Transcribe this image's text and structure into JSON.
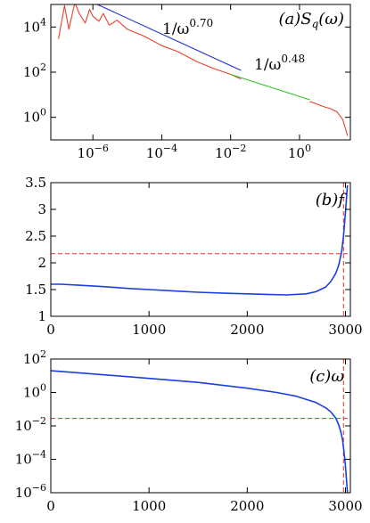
{
  "colors": {
    "raw_spectrum": "#e8402a",
    "fit_low": "#2030d0",
    "fit_high": "#30c020",
    "curve": "#1a3fe0",
    "threshold": "#e83030"
  },
  "chart_data": [
    {
      "type": "line",
      "panel_label": "(a)S_q(ω)",
      "xscale": "log",
      "yscale": "log",
      "xlim": [
        6e-08,
        30
      ],
      "ylim": [
        0.1,
        100000
      ],
      "x_ticks": [
        1e-06,
        0.0001,
        0.01,
        1
      ],
      "x_tick_labels": [
        "10^-6",
        "10^-4",
        "10^-2",
        "10^0"
      ],
      "y_ticks": [
        1,
        100,
        10000
      ],
      "y_tick_labels": [
        "10^0",
        "10^2",
        "10^4"
      ],
      "annotations": [
        {
          "base": "1/ω",
          "exponent": "0.70"
        },
        {
          "base": "1/ω",
          "exponent": "0.48"
        }
      ],
      "series": [
        {
          "role": "raw_spectrum",
          "x": [
            1e-07,
            1.5e-07,
            2e-07,
            3e-07,
            4e-07,
            6e-07,
            8e-07,
            1e-06,
            1.5e-06,
            2e-06,
            3e-06,
            5e-06,
            1e-05,
            3e-05,
            0.0001,
            0.0003,
            0.001,
            0.003,
            0.01,
            0.02
          ],
          "y": [
            3000,
            90000,
            8000,
            120000,
            40000,
            15000,
            60000,
            30000,
            18000,
            40000,
            12000,
            20000,
            8000,
            4000,
            1500,
            800,
            300,
            150,
            80,
            50
          ]
        },
        {
          "role": "raw_spectrum",
          "x": [
            2,
            3,
            5,
            8,
            12,
            18,
            25
          ],
          "y": [
            5,
            4,
            3,
            2.4,
            1.8,
            0.8,
            0.15
          ]
        },
        {
          "role": "fit_low",
          "x": [
            5e-07,
            0.02
          ],
          "y": [
            200000,
            120
          ]
        },
        {
          "role": "fit_high",
          "x": [
            0.01,
            2
          ],
          "y": [
            80,
            6
          ]
        }
      ]
    },
    {
      "type": "line",
      "panel_label": "(b)f",
      "xlim": [
        0,
        3050
      ],
      "ylim": [
        1,
        3.5
      ],
      "x_ticks": [
        0,
        1000,
        2000,
        3000
      ],
      "x_tick_labels": [
        "0",
        "1000",
        "2000",
        "3000"
      ],
      "y_ticks": [
        1,
        1.5,
        2,
        2.5,
        3,
        3.5
      ],
      "y_tick_labels": [
        "1",
        "1.5",
        "2",
        "2.5",
        "3",
        "3.5"
      ],
      "threshold_y": 2.17,
      "threshold_x": 2980,
      "series": [
        {
          "role": "curve",
          "x": [
            0,
            100,
            300,
            500,
            800,
            1000,
            1300,
            1500,
            1800,
            2000,
            2200,
            2400,
            2600,
            2700,
            2800,
            2850,
            2900,
            2930,
            2960,
            2980,
            3000,
            3020
          ],
          "y": [
            1.6,
            1.6,
            1.58,
            1.56,
            1.52,
            1.5,
            1.47,
            1.45,
            1.43,
            1.42,
            1.41,
            1.4,
            1.42,
            1.46,
            1.55,
            1.65,
            1.8,
            1.95,
            2.2,
            2.5,
            2.95,
            3.45
          ]
        }
      ]
    },
    {
      "type": "line",
      "panel_label": "(c)ω",
      "yscale": "log",
      "xlim": [
        0,
        3050
      ],
      "ylim": [
        1e-06,
        100
      ],
      "x_ticks": [
        0,
        1000,
        2000,
        3000
      ],
      "x_tick_labels": [
        "0",
        "1000",
        "2000",
        "3000"
      ],
      "y_ticks": [
        100,
        1,
        0.01,
        0.0001,
        1e-06
      ],
      "y_tick_labels": [
        "10^2",
        "10^0",
        "10^-2",
        "10^-4",
        "10^-6"
      ],
      "threshold_y": 0.028,
      "threshold_x": 2980,
      "series": [
        {
          "role": "curve",
          "x": [
            0,
            500,
            1000,
            1500,
            2000,
            2300,
            2500,
            2700,
            2800,
            2850,
            2900,
            2930,
            2950,
            2970,
            2985,
            3000,
            3010,
            3020
          ],
          "y": [
            20,
            12,
            7,
            4,
            1.8,
            1,
            0.6,
            0.25,
            0.12,
            0.07,
            0.03,
            0.012,
            0.005,
            0.0015,
            0.0003,
            4e-05,
            6e-06,
            1e-06
          ]
        }
      ]
    }
  ]
}
